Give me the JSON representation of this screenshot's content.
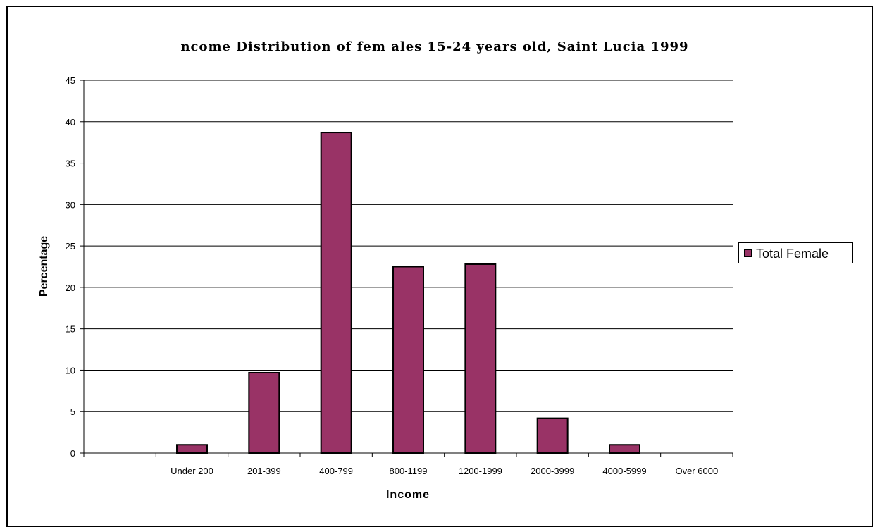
{
  "chart_data": {
    "type": "bar",
    "title": "ncome Distribution of fem ales 15-24 years old, Saint Lucia 1999",
    "xlabel": "Income",
    "ylabel": "Percentage",
    "ylim": [
      0,
      45
    ],
    "yticks": [
      0,
      5,
      10,
      15,
      20,
      25,
      30,
      35,
      40,
      45
    ],
    "grid": true,
    "legend_position": "right",
    "categories": [
      "",
      "Under 200",
      "201-399",
      "400-799",
      "800-1199",
      "1200-1999",
      "2000-3999",
      "4000-5999",
      "Over 6000"
    ],
    "series": [
      {
        "name": "Total Female",
        "color": "#993366",
        "values": [
          0,
          1.0,
          9.7,
          38.7,
          22.5,
          22.8,
          4.2,
          1.0,
          0
        ]
      }
    ]
  }
}
